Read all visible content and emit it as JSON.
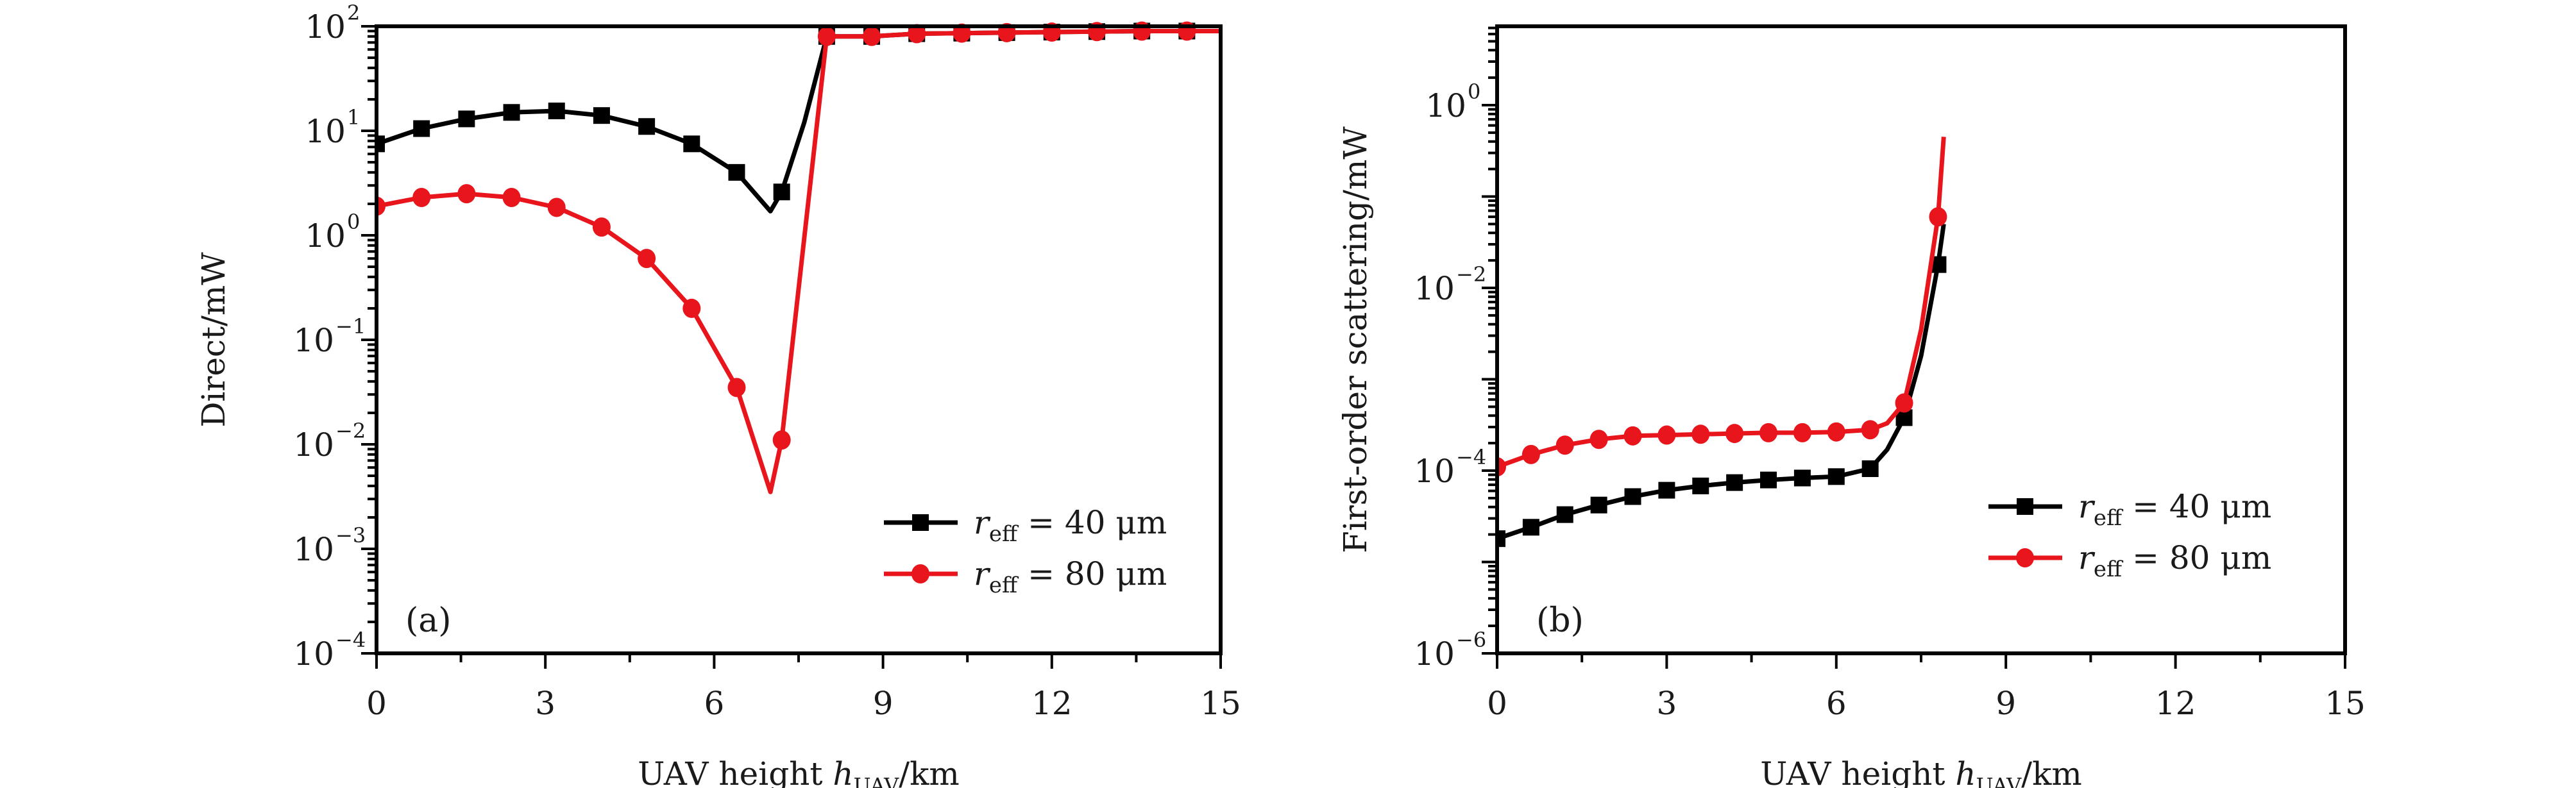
{
  "chart_data": [
    {
      "type": "line",
      "panel_label": "(a)",
      "title": "",
      "xlabel": "UAV height h_UAV/km",
      "xlabel_parts": {
        "main": "UAV height ",
        "var": "h",
        "sub": "UAV",
        "unit": "/km"
      },
      "ylabel": "Direct/mW",
      "yscale": "log",
      "xlim": [
        0,
        15
      ],
      "ylim": [
        0.0001,
        100
      ],
      "x_ticks": [
        0,
        3,
        6,
        9,
        12,
        15
      ],
      "x_tick_labels": [
        "0",
        "3",
        "6",
        "9",
        "12",
        "15"
      ],
      "y_ticks": [
        -4,
        -3,
        -2,
        -1,
        0,
        1,
        2
      ],
      "y_tick_labels": [
        {
          "base": "10",
          "exp": "−4"
        },
        {
          "base": "10",
          "exp": "−3"
        },
        {
          "base": "10",
          "exp": "−2"
        },
        {
          "base": "10",
          "exp": "−1"
        },
        {
          "base": "10",
          "exp": "0"
        },
        {
          "base": "10",
          "exp": "1"
        },
        {
          "base": "10",
          "exp": "2"
        }
      ],
      "legend_position": "lower-right",
      "series": [
        {
          "name": "r_eff = 40 μm",
          "legend": {
            "var": "r",
            "sub": "eff",
            "rest": " = 40 μm"
          },
          "color": "#000000",
          "marker": "square",
          "x": [
            0,
            0.8,
            1.6,
            2.4,
            3.2,
            4.0,
            4.8,
            5.6,
            6.4,
            7.2,
            8.0,
            8.8,
            9.6,
            10.4,
            11.2,
            12.0,
            12.8,
            13.6,
            14.4
          ],
          "values": [
            7.5,
            10.5,
            13.0,
            15.0,
            15.5,
            14.0,
            11.0,
            7.5,
            4.0,
            2.6,
            80,
            80,
            85,
            86,
            87,
            88,
            89,
            90,
            90
          ],
          "curve_x": [
            0,
            0.8,
            1.6,
            2.4,
            3.2,
            4.0,
            4.8,
            5.6,
            6.4,
            7.0,
            7.2,
            7.6,
            8.0,
            8.8,
            9.6,
            10.4,
            11.2,
            12.0,
            12.8,
            13.6,
            14.4,
            15.0
          ],
          "curve_y": [
            7.5,
            10.5,
            13.0,
            15.0,
            15.5,
            14.0,
            11.0,
            7.5,
            4.0,
            1.7,
            2.6,
            12,
            80,
            80,
            85,
            86,
            87,
            88,
            89,
            90,
            90,
            90
          ]
        },
        {
          "name": "r_eff = 80 μm",
          "legend": {
            "var": "r",
            "sub": "eff",
            "rest": " = 80 μm"
          },
          "color": "#e8151c",
          "marker": "circle",
          "x": [
            0,
            0.8,
            1.6,
            2.4,
            3.2,
            4.0,
            4.8,
            5.6,
            6.4,
            7.2,
            8.0,
            8.8,
            9.6,
            10.4,
            11.2,
            12.0,
            12.8,
            13.6,
            14.4
          ],
          "values": [
            1.9,
            2.3,
            2.5,
            2.3,
            1.85,
            1.2,
            0.6,
            0.2,
            0.035,
            0.011,
            80,
            80,
            85,
            86,
            87,
            88,
            89,
            90,
            90
          ],
          "curve_x": [
            0,
            0.8,
            1.6,
            2.4,
            3.2,
            4.0,
            4.8,
            5.6,
            6.4,
            7.0,
            7.2,
            8.0,
            8.8,
            9.6,
            10.4,
            11.2,
            12.0,
            12.8,
            13.6,
            14.4,
            15.0
          ],
          "curve_y": [
            1.9,
            2.3,
            2.5,
            2.3,
            1.85,
            1.2,
            0.6,
            0.2,
            0.035,
            0.0035,
            0.011,
            80,
            80,
            85,
            86,
            87,
            88,
            89,
            90,
            90,
            90
          ]
        }
      ]
    },
    {
      "type": "line",
      "panel_label": "(b)",
      "title": "",
      "xlabel": "UAV height h_UAV/km",
      "xlabel_parts": {
        "main": "UAV height ",
        "var": "h",
        "sub": "UAV",
        "unit": "/km"
      },
      "ylabel": "First-order scattering/mW",
      "yscale": "log",
      "xlim": [
        0,
        15
      ],
      "ylim": [
        1e-06,
        7.3
      ],
      "x_ticks": [
        0,
        3,
        6,
        9,
        12,
        15
      ],
      "x_tick_labels": [
        "0",
        "3",
        "6",
        "9",
        "12",
        "15"
      ],
      "y_ticks": [
        -6,
        -4,
        -2,
        0
      ],
      "y_tick_labels": [
        {
          "base": "10",
          "exp": "−6"
        },
        {
          "base": "10",
          "exp": "−4"
        },
        {
          "base": "10",
          "exp": "−2"
        },
        {
          "base": "10",
          "exp": "0"
        }
      ],
      "legend_position": "lower-right",
      "series": [
        {
          "name": "r_eff = 40 μm",
          "legend": {
            "var": "r",
            "sub": "eff",
            "rest": " = 40 μm"
          },
          "color": "#000000",
          "marker": "square",
          "x": [
            0,
            0.6,
            1.2,
            1.8,
            2.4,
            3.0,
            3.6,
            4.2,
            4.8,
            5.4,
            6.0,
            6.6,
            7.2,
            7.8
          ],
          "values": [
            1.8e-05,
            2.4e-05,
            3.3e-05,
            4.2e-05,
            5.2e-05,
            6.1e-05,
            6.8e-05,
            7.4e-05,
            7.9e-05,
            8.3e-05,
            8.6e-05,
            0.000105,
            0.00038,
            0.018
          ],
          "curve_x": [
            0,
            0.6,
            1.2,
            1.8,
            2.4,
            3.0,
            3.6,
            4.2,
            4.8,
            5.4,
            6.0,
            6.6,
            6.9,
            7.2,
            7.5,
            7.8,
            7.9
          ],
          "curve_y": [
            1.8e-05,
            2.4e-05,
            3.3e-05,
            4.2e-05,
            5.2e-05,
            6.1e-05,
            6.8e-05,
            7.4e-05,
            7.9e-05,
            8.3e-05,
            8.6e-05,
            0.000105,
            0.00017,
            0.00038,
            0.0018,
            0.018,
            0.05
          ]
        },
        {
          "name": "r_eff = 80 μm",
          "legend": {
            "var": "r",
            "sub": "eff",
            "rest": " = 80 μm"
          },
          "color": "#e8151c",
          "marker": "circle",
          "x": [
            0,
            0.6,
            1.2,
            1.8,
            2.4,
            3.0,
            3.6,
            4.2,
            4.8,
            5.4,
            6.0,
            6.6,
            7.2,
            7.8
          ],
          "values": [
            0.00011,
            0.00015,
            0.00019,
            0.00022,
            0.00024,
            0.000245,
            0.00025,
            0.000255,
            0.00026,
            0.00026,
            0.000265,
            0.00028,
            0.00055,
            0.06
          ],
          "curve_x": [
            0,
            0.6,
            1.2,
            1.8,
            2.4,
            3.0,
            3.6,
            4.2,
            4.8,
            5.4,
            6.0,
            6.6,
            6.9,
            7.2,
            7.5,
            7.8,
            7.9
          ],
          "curve_y": [
            0.00011,
            0.00015,
            0.00019,
            0.00022,
            0.00024,
            0.000245,
            0.00025,
            0.000255,
            0.00026,
            0.00026,
            0.000265,
            0.00028,
            0.00033,
            0.00055,
            0.0035,
            0.06,
            0.45
          ]
        }
      ]
    }
  ]
}
